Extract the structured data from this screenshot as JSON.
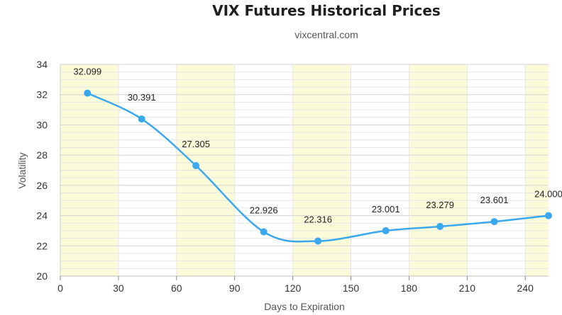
{
  "chart_data": {
    "type": "line",
    "title": "VIX Futures Historical Prices",
    "subtitle": "vixcentral.com",
    "xlabel": "Days to Expiration",
    "ylabel": "Volatility",
    "xlim": [
      0,
      252
    ],
    "ylim": [
      20,
      34
    ],
    "x_ticks": [
      0,
      30,
      60,
      90,
      120,
      150,
      180,
      210,
      240
    ],
    "y_ticks": [
      20,
      22,
      24,
      26,
      28,
      30,
      32,
      34
    ],
    "grid": true,
    "band_color": "#fbfbd9",
    "series": [
      {
        "color": "#3aa8ee",
        "x": [
          14,
          42,
          70,
          105,
          133,
          168,
          196,
          224,
          252
        ],
        "values": [
          32.099,
          30.391,
          27.305,
          22.926,
          22.316,
          23.001,
          23.279,
          23.601,
          24.0
        ],
        "labels": [
          "32.099",
          "30.391",
          "27.305",
          "22.926",
          "22.316",
          "23.001",
          "23.279",
          "23.601",
          "24.000"
        ]
      }
    ]
  }
}
